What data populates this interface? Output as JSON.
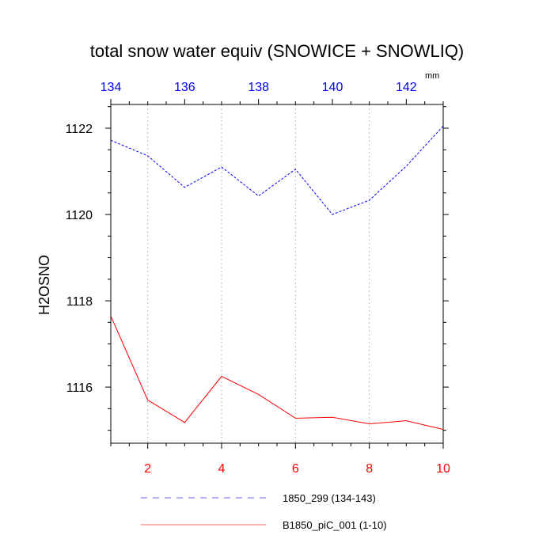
{
  "chart_data": {
    "type": "line",
    "title": "total snow water equiv (SNOWICE + SNOWLIQ)",
    "units": "mm",
    "ylabel": "H2OSNO",
    "ylim": [
      1114.7,
      1122.55
    ],
    "yticks": [
      1116,
      1118,
      1120,
      1122
    ],
    "yticks_labels": [
      "1116",
      "1118",
      "1120",
      "1122"
    ],
    "bottom_axis": {
      "range": [
        1,
        10
      ],
      "ticks": [
        2,
        4,
        6,
        8,
        10
      ],
      "tick_labels": [
        "2",
        "4",
        "6",
        "8",
        "10"
      ],
      "color": "#ff0000"
    },
    "top_axis": {
      "range": [
        134,
        143
      ],
      "ticks": [
        134,
        136,
        138,
        140,
        142
      ],
      "tick_labels": [
        "134",
        "136",
        "138",
        "140",
        "142"
      ],
      "color": "#0000ff"
    },
    "grid": "vertical dotted at bottom-axis ticks",
    "legend_position": "bottom",
    "series": [
      {
        "name": "1850_299 (134-143)",
        "axis": "top",
        "color": "#0000ff",
        "style": "dashed",
        "x": [
          134,
          135,
          136,
          137,
          138,
          139,
          140,
          141,
          142,
          143
        ],
        "y": [
          1121.72,
          1121.36,
          1120.63,
          1121.1,
          1120.43,
          1121.05,
          1120.0,
          1120.33,
          1121.12,
          1122.05
        ]
      },
      {
        "name": "B1850_piC_001 (1-10)",
        "axis": "bottom",
        "color": "#ff0000",
        "style": "solid",
        "x": [
          1,
          2,
          3,
          4,
          5,
          6,
          7,
          8,
          9,
          10
        ],
        "y": [
          1117.65,
          1115.7,
          1115.18,
          1116.25,
          1115.83,
          1115.28,
          1115.3,
          1115.15,
          1115.22,
          1115.02
        ]
      }
    ]
  }
}
